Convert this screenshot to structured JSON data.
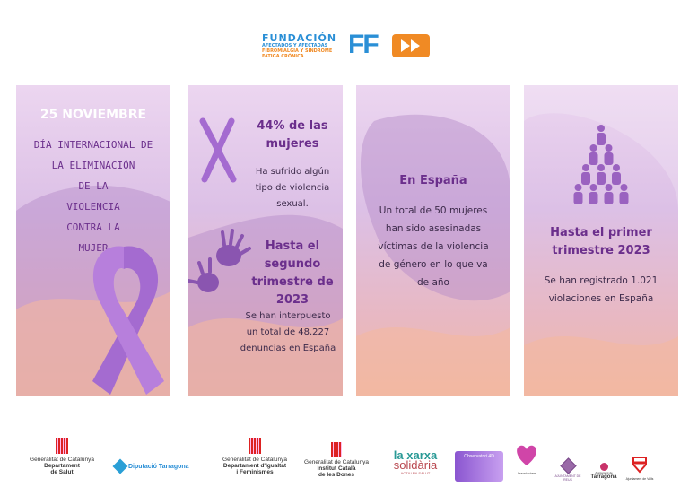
{
  "header": {
    "logo_title": "FUNDACIÓN",
    "logo_lines": [
      "AFECTADOS Y AFECTADAS",
      "FIBROMIALGIA Y SÍNDROME",
      "FATIGA CRÓNICA"
    ],
    "logo_mark": "FF"
  },
  "panels": [
    {
      "date": "25 NOVIEMBRE",
      "lines": [
        "DÍA INTERNACIONAL DE",
        "LA ELIMINACIÓN",
        "DE LA",
        "VIOLENCIA",
        "CONTRA LA",
        "MUJER"
      ],
      "icon": "ribbon-icon"
    },
    {
      "stat1_title": [
        "44% de las",
        "mujeres"
      ],
      "stat1_text": [
        "Ha sufrido algún",
        "tipo de violencia",
        "sexual."
      ],
      "stat2_title": [
        "Hasta el",
        "segundo",
        "trimestre de",
        "2023"
      ],
      "stat2_text": [
        "Se han interpuesto",
        "un total de 48.227",
        "denuncias en España"
      ],
      "icons": [
        "x-mark-icon",
        "hand-prints-icon"
      ]
    },
    {
      "title": "En España",
      "text": [
        "Un total de 50 mujeres",
        "han sido asesinadas",
        "víctimas de la violencia",
        "de género en lo que va",
        "de año"
      ]
    },
    {
      "title": [
        "Hasta el primer",
        "trimestre 2023"
      ],
      "text": [
        "Se han registrado 1.021",
        "violaciones en España"
      ],
      "icon": "people-pyramid-icon"
    }
  ],
  "footer": {
    "logos": [
      {
        "lines": [
          "Generalitat de Catalunya",
          "Departament",
          "de Salut"
        ]
      },
      {
        "lines": [
          "Diputació Tarragona"
        ]
      },
      {
        "lines": [
          "Generalitat de Catalunya",
          "Departament d'Igualtat",
          "i Feminismes"
        ]
      },
      {
        "lines": [
          "Generalitat de Catalunya",
          "Institut Català",
          "de les Dones"
        ]
      },
      {
        "lines": [
          "la xarxa",
          "solidària",
          "ACTIU EN SALUT"
        ]
      },
      {
        "lines": [
          "Observatori 4D"
        ]
      },
      {
        "lines": [
          "Associacions"
        ]
      },
      {
        "lines": [
          "AJUNTAMENT DE REUS"
        ]
      },
      {
        "lines": [
          "Ajuntament de",
          "Tarragona"
        ]
      },
      {
        "lines": [
          "Ajuntament de Valls"
        ]
      }
    ]
  },
  "colors": {
    "purple": "#6b2f8c",
    "orange": "#f08a24",
    "blue": "#2a8fd6",
    "lavender": "#ecd6f0",
    "peach": "#f0b9a4"
  }
}
